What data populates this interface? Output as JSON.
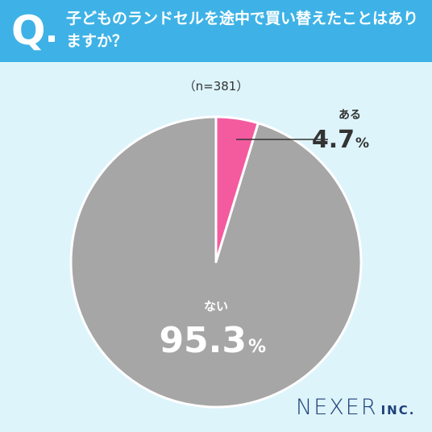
{
  "header": {
    "q_mark": "Q",
    "question": "子どものランドセルを途中で買い替えたことはありますか？"
  },
  "sample": "（n=381）",
  "chart_data": {
    "type": "pie",
    "title": "",
    "slices": [
      {
        "label": "ある",
        "value": 4.7,
        "display": "4.7",
        "unit": "%",
        "color": "#f45b9f"
      },
      {
        "label": "ない",
        "value": 95.3,
        "display": "95.3",
        "unit": "%",
        "color": "#a6a6a6"
      }
    ]
  },
  "logo": {
    "name": "NEXER",
    "suffix": "INC."
  }
}
